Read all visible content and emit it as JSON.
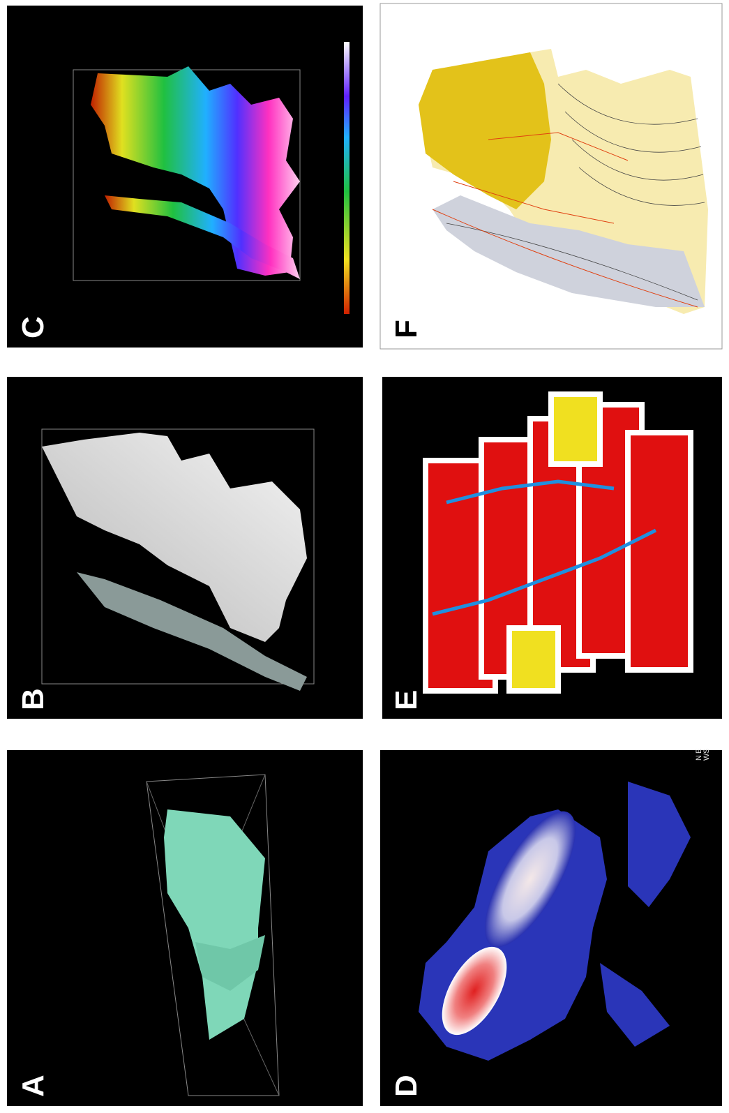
{
  "panels": [
    {
      "label": "A"
    },
    {
      "label": "B"
    },
    {
      "label": "C"
    },
    {
      "label": "D"
    },
    {
      "label": "E"
    },
    {
      "label": "F"
    }
  ],
  "compass": {
    "north": "N",
    "east": "E",
    "west": "W",
    "south": "S"
  }
}
